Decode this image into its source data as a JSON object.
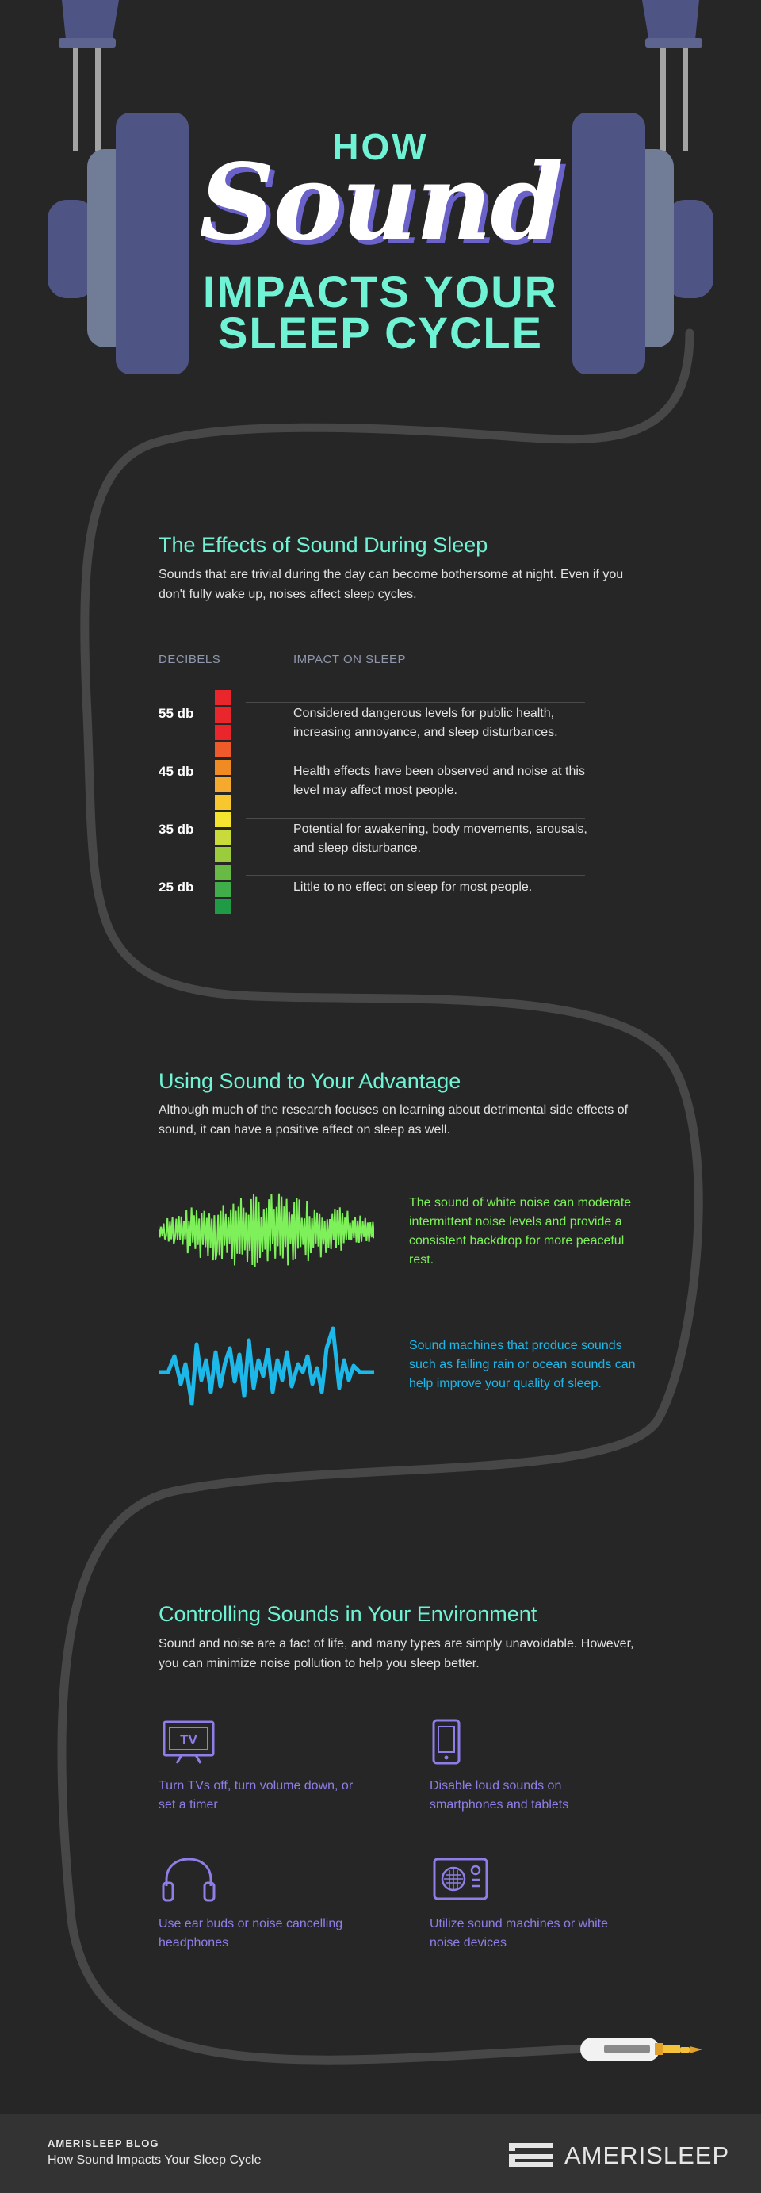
{
  "header": {
    "how": "HOW",
    "sound": "Sound",
    "impacts": "IMPACTS YOUR",
    "sleep_cycle": "SLEEP CYCLE"
  },
  "effects": {
    "title": "The Effects of Sound During Sleep",
    "body": "Sounds that are trivial during the day can become bothersome at night. Even if you don't fully wake up, noises affect sleep cycles.",
    "col_decibels": "DECIBELS",
    "col_impact": "IMPACT ON SLEEP",
    "levels": [
      {
        "db": "55 db",
        "impact": "Considered dangerous levels for public health, increasing annoyance, and sleep disturbances."
      },
      {
        "db": "45 db",
        "impact": "Health effects have been observed and noise at this level may affect most people."
      },
      {
        "db": "35 db",
        "impact": "Potential for awakening, body movements, arousals, and sleep disturbance."
      },
      {
        "db": "25 db",
        "impact": "Little to no effect on sleep for most people."
      }
    ],
    "meter_colors": [
      "#e8262b",
      "#e8262b",
      "#e8262b",
      "#ee5a2a",
      "#f08a22",
      "#f5a92e",
      "#f7c72f",
      "#f4e42f",
      "#c9db3a",
      "#9ccc3c",
      "#67bb44",
      "#3fae4a",
      "#1f9a45"
    ]
  },
  "advantage": {
    "title": "Using Sound to Your Advantage",
    "body": "Although much of the research focuses on learning about detrimental side effects of sound, it can have a positive affect on sleep as well.",
    "white_noise": "The sound of white noise can moderate intermittent noise levels and provide a consistent backdrop for more peaceful rest.",
    "machines": "Sound machines that produce sounds such as falling rain or ocean sounds can help improve your quality of sleep.",
    "white_noise_color": "#7ef05a",
    "machines_color": "#1db8ea"
  },
  "controlling": {
    "title": "Controlling Sounds in Your Environment",
    "body": "Sound and noise are a fact of life, and many types are simply unavoidable. However, you can minimize noise pollution to help you sleep better.",
    "tv_icon_text": "TV",
    "tips": [
      {
        "icon": "tv-icon",
        "text": "Turn TVs off, turn volume down, or set a timer"
      },
      {
        "icon": "smartphone-icon",
        "text": "Disable loud sounds on smartphones and tablets"
      },
      {
        "icon": "headphones-icon",
        "text": "Use ear buds or noise cancelling headphones"
      },
      {
        "icon": "sound-machine-icon",
        "text": "Utilize sound machines or white noise devices"
      }
    ],
    "accent": "#8f7ee8"
  },
  "footer": {
    "blog": "AMERISLEEP BLOG",
    "title": "How Sound Impacts Your Sleep Cycle",
    "brand": "AMERISLEEP"
  }
}
